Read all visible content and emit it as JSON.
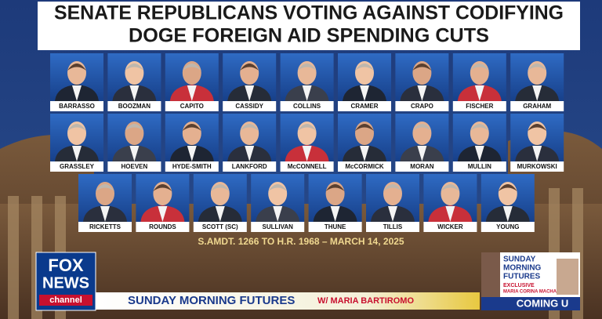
{
  "header": {
    "title_lines": [
      "SENATE REPUBLICANS VOTING AGAINST CODIFYING",
      "DOGE FOREIGN AID SPENDING CUTS"
    ]
  },
  "senators": {
    "rows": [
      [
        "BARRASSO",
        "BOOZMAN",
        "CAPITO",
        "CASSIDY",
        "COLLINS",
        "CRAMER",
        "CRAPO",
        "FISCHER",
        "GRAHAM"
      ],
      [
        "GRASSLEY",
        "HOEVEN",
        "HYDE-SMITH",
        "LANKFORD",
        "McCONNELL",
        "McCORMICK",
        "MORAN",
        "MULLIN",
        "MURKOWSKI"
      ],
      [
        "RICKETTS",
        "ROUNDS",
        "SCOTT (SC)",
        "SULLIVAN",
        "THUNE",
        "TILLIS",
        "WICKER",
        "YOUNG"
      ]
    ]
  },
  "caption": "S.AMDT. 1266 TO H.R. 1968 – MARCH 14, 2025",
  "logo": {
    "lines": [
      "FOX",
      "NEWS",
      "channel"
    ]
  },
  "banner": {
    "show": "SUNDAY MORNING FUTURES",
    "host": "W/ MARIA BARTIROMO"
  },
  "promo": {
    "lines": [
      "SUNDAY",
      "MORNING",
      "FUTURES"
    ],
    "tag": "EXCLUSIVE",
    "guest": "MARIA CORINA MACHA",
    "footer": "COMING U"
  }
}
